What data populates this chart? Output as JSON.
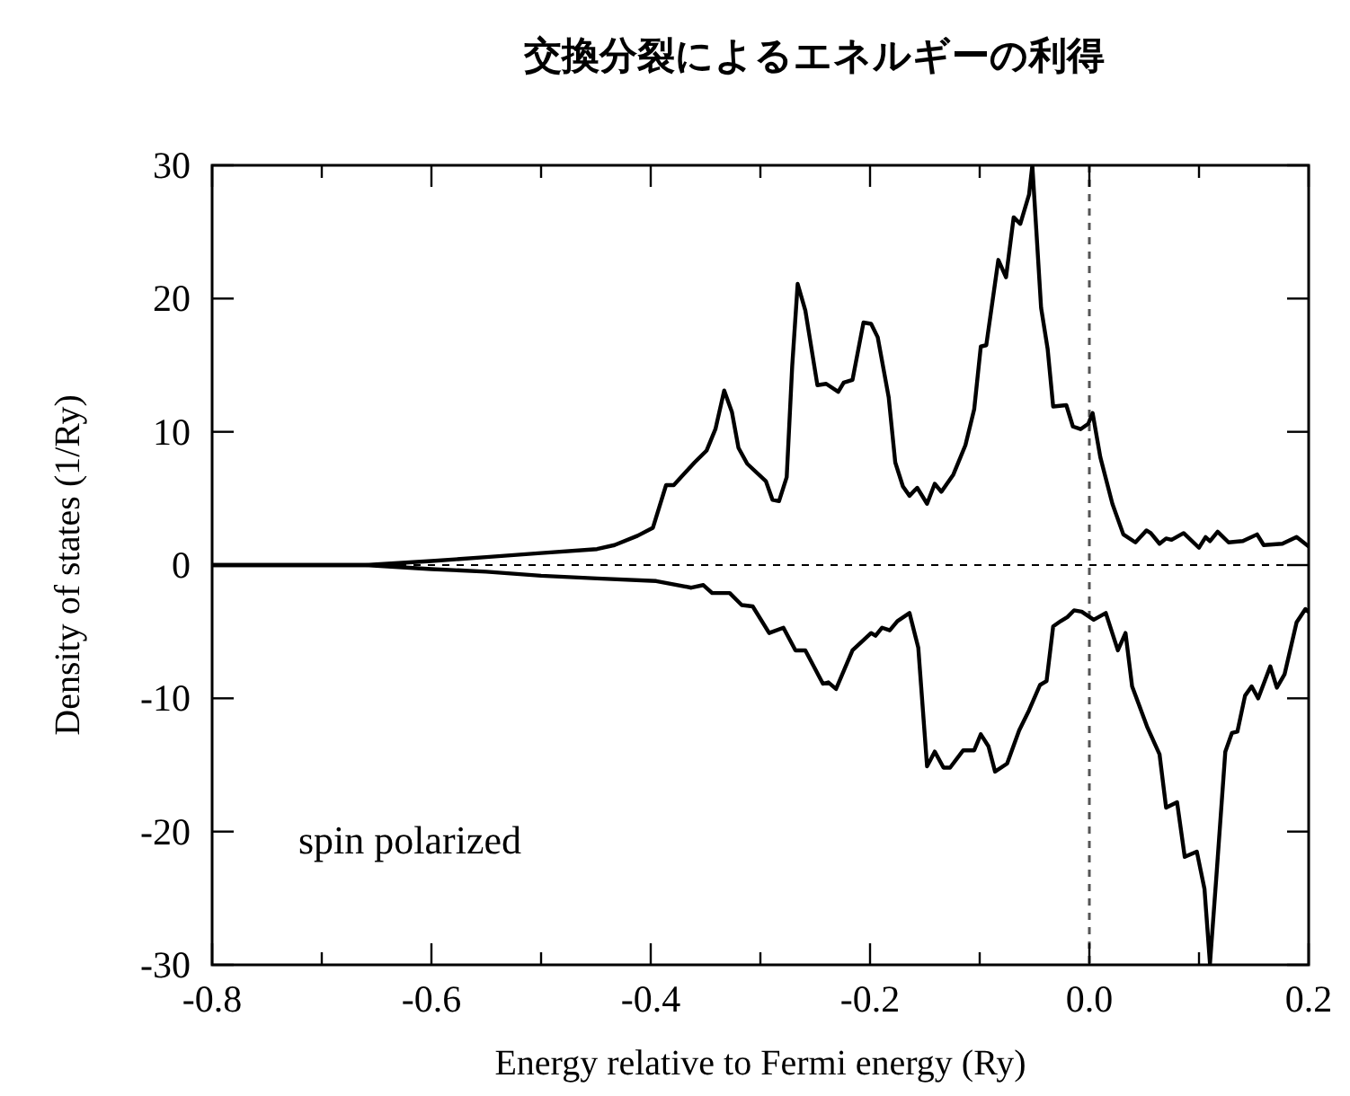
{
  "chart_data": {
    "type": "line",
    "title": "交換分裂によるエネルギーの利得",
    "xlabel": "Energy relative to Fermi energy (Ry)",
    "ylabel": "Density of states (1/Ry)",
    "annotations": [
      "spin polarized"
    ],
    "xlim": [
      -0.8,
      0.2
    ],
    "ylim": [
      -30,
      30
    ],
    "xticks": [
      -0.8,
      {
        "value": -0.7,
        "label": null
      },
      -0.6,
      {
        "value": -0.5,
        "label": null
      },
      -0.4,
      {
        "value": -0.3,
        "label": null
      },
      -0.2,
      {
        "value": -0.1,
        "label": null
      },
      {
        "value": 0,
        "label": "0.0"
      },
      {
        "value": 0.1,
        "label": null
      },
      0.2
    ],
    "yticks": [
      -30,
      -20,
      -10,
      0,
      10,
      20,
      30
    ],
    "ref_lines": [
      {
        "axis": "y",
        "value": 0,
        "line_style": "dashed",
        "color": "#000000"
      },
      {
        "axis": "x",
        "value": 0,
        "line_style": "dashed",
        "color": "#555555"
      }
    ],
    "grid": false,
    "marker": "none",
    "line_style": "solid",
    "series": [
      {
        "color": "#000000",
        "x": [
          -0.8,
          -0.66,
          -0.6,
          -0.55,
          -0.5,
          -0.449,
          -0.433,
          -0.412,
          -0.398,
          -0.386,
          -0.379,
          -0.36,
          -0.349,
          -0.341,
          -0.333,
          -0.326,
          -0.32,
          -0.312,
          -0.295,
          -0.289,
          -0.283,
          -0.276,
          -0.271,
          -0.266,
          -0.259,
          -0.248,
          -0.24,
          -0.229,
          -0.224,
          -0.216,
          -0.206,
          -0.199,
          -0.193,
          -0.183,
          -0.177,
          -0.17,
          -0.164,
          -0.157,
          -0.148,
          -0.141,
          -0.135,
          -0.124,
          -0.113,
          -0.105,
          -0.099,
          -0.094,
          -0.083,
          -0.076,
          -0.069,
          -0.063,
          -0.055,
          -0.052,
          -0.044,
          -0.038,
          -0.033,
          -0.021,
          -0.015,
          -0.008,
          -0.001,
          0.003,
          0.01,
          0.021,
          0.031,
          0.042,
          0.052,
          0.056,
          0.064,
          0.07,
          0.075,
          0.086,
          0.1,
          0.106,
          0.11,
          0.117,
          0.127,
          0.14,
          0.153,
          0.159,
          0.176,
          0.189,
          0.2
        ],
        "values": [
          0,
          0,
          0.3,
          0.6,
          0.9,
          1.2,
          1.5,
          2.2,
          2.8,
          6.0,
          6.0,
          7.7,
          8.6,
          10.2,
          13.1,
          11.5,
          8.8,
          7.6,
          6.3,
          4.9,
          4.8,
          6.6,
          14.9,
          21.1,
          19.1,
          13.5,
          13.6,
          13.0,
          13.7,
          13.9,
          18.2,
          18.1,
          17.1,
          12.6,
          7.7,
          5.9,
          5.2,
          5.8,
          4.6,
          6.1,
          5.5,
          6.8,
          9.0,
          11.7,
          16.4,
          16.5,
          22.9,
          21.6,
          26.1,
          25.6,
          27.8,
          30.0,
          19.3,
          16.2,
          11.9,
          12.0,
          10.4,
          10.2,
          10.6,
          11.4,
          8.1,
          4.6,
          2.3,
          1.7,
          2.6,
          2.4,
          1.6,
          2.0,
          1.9,
          2.4,
          1.3,
          2.1,
          1.8,
          2.5,
          1.7,
          1.8,
          2.3,
          1.5,
          1.6,
          2.1,
          1.4
        ]
      },
      {
        "color": "#000000",
        "x": [
          -0.8,
          -0.66,
          -0.6,
          -0.55,
          -0.5,
          -0.449,
          -0.395,
          -0.363,
          -0.352,
          -0.344,
          -0.328,
          -0.317,
          -0.307,
          -0.292,
          -0.279,
          -0.268,
          -0.259,
          -0.243,
          -0.238,
          -0.231,
          -0.216,
          -0.199,
          -0.195,
          -0.189,
          -0.182,
          -0.175,
          -0.164,
          -0.156,
          -0.148,
          -0.141,
          -0.133,
          -0.127,
          -0.115,
          -0.105,
          -0.099,
          -0.092,
          -0.086,
          -0.075,
          -0.064,
          -0.055,
          -0.045,
          -0.039,
          -0.033,
          -0.026,
          -0.02,
          -0.014,
          -0.007,
          0.004,
          0.015,
          0.026,
          0.033,
          0.039,
          0.053,
          0.064,
          0.07,
          0.08,
          0.087,
          0.098,
          0.105,
          0.11,
          0.116,
          0.124,
          0.13,
          0.135,
          0.142,
          0.148,
          0.154,
          0.165,
          0.171,
          0.178,
          0.189,
          0.197,
          0.2
        ],
        "values": [
          0,
          0,
          -0.3,
          -0.5,
          -0.8,
          -1.0,
          -1.2,
          -1.7,
          -1.5,
          -2.1,
          -2.1,
          -3.0,
          -3.1,
          -5.1,
          -4.7,
          -6.4,
          -6.4,
          -8.9,
          -8.8,
          -9.3,
          -6.4,
          -5.1,
          -5.3,
          -4.7,
          -4.9,
          -4.2,
          -3.6,
          -6.2,
          -15.1,
          -14.0,
          -15.2,
          -15.2,
          -13.9,
          -13.9,
          -12.7,
          -13.6,
          -15.5,
          -14.9,
          -12.4,
          -10.9,
          -9.0,
          -8.7,
          -4.6,
          -4.2,
          -3.9,
          -3.4,
          -3.5,
          -4.1,
          -3.6,
          -6.4,
          -5.1,
          -9.1,
          -12.2,
          -14.2,
          -18.2,
          -17.8,
          -21.9,
          -21.5,
          -24.3,
          -29.9,
          -23.2,
          -14.0,
          -12.6,
          -12.5,
          -9.8,
          -9.1,
          -10.0,
          -7.6,
          -9.2,
          -8.2,
          -4.3,
          -3.3,
          -3.5
        ]
      }
    ]
  }
}
